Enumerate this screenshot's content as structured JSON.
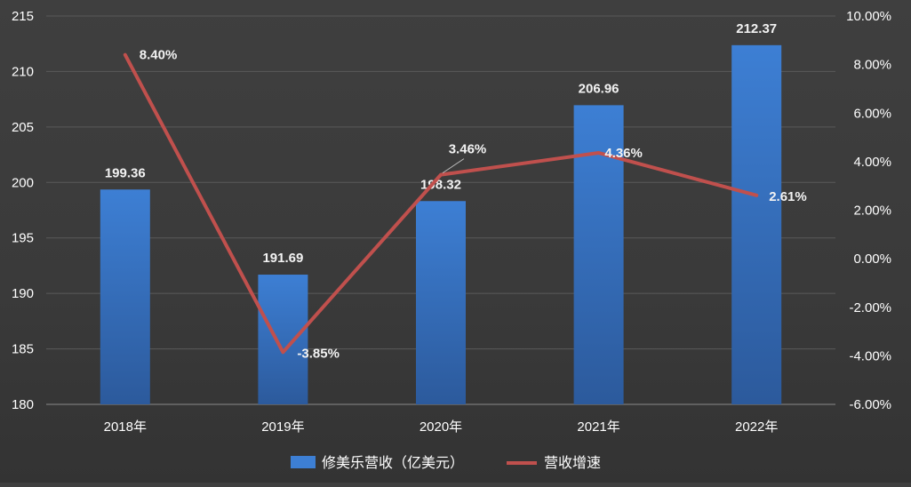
{
  "chart_data": {
    "type": "bar",
    "categories": [
      "2018年",
      "2019年",
      "2020年",
      "2021年",
      "2022年"
    ],
    "series": [
      {
        "name": "修美乐营收（亿美元）",
        "type": "bar",
        "axis": "left",
        "values": [
          199.36,
          191.69,
          198.32,
          206.96,
          212.37
        ],
        "labels": [
          "199.36",
          "191.69",
          "198.32",
          "206.96",
          "212.37"
        ],
        "color": "#3d7fd4"
      },
      {
        "name": "营收增速",
        "type": "line",
        "axis": "right",
        "values": [
          8.4,
          -3.85,
          3.46,
          4.36,
          2.61
        ],
        "labels": [
          "8.40%",
          "-3.85%",
          "3.46%",
          "4.36%",
          "2.61%"
        ],
        "color": "#c0504d"
      }
    ],
    "y_left": {
      "range": [
        180,
        215
      ],
      "ticks": [
        "180",
        "185",
        "190",
        "195",
        "200",
        "205",
        "210",
        "215"
      ]
    },
    "y_right": {
      "range": [
        -6,
        10
      ],
      "ticks": [
        "-6.00%",
        "-4.00%",
        "-2.00%",
        "0.00%",
        "2.00%",
        "4.00%",
        "6.00%",
        "8.00%",
        "10.00%"
      ]
    },
    "grid": true,
    "legend_position": "bottom",
    "colors": {
      "background": "#3a3a3a",
      "bar": "#3d7fd4",
      "line": "#c0504d",
      "text": "#ffffff"
    }
  }
}
